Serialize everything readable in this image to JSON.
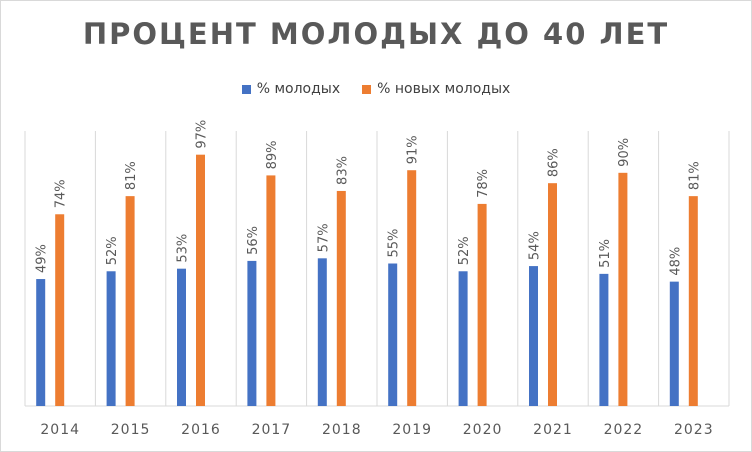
{
  "chart_data": {
    "type": "bar",
    "title": "ПРОЦЕНТ МОЛОДЫХ ДО 40 ЛЕТ",
    "categories": [
      "2014",
      "2015",
      "2016",
      "2017",
      "2018",
      "2019",
      "2020",
      "2021",
      "2022",
      "2023"
    ],
    "series": [
      {
        "name": "% молодых",
        "color": "#4472c4",
        "values": [
          49,
          52,
          53,
          56,
          57,
          55,
          52,
          54,
          51,
          48
        ],
        "labels": [
          "49%",
          "52%",
          "53%",
          "56%",
          "57%",
          "55%",
          "52%",
          "54%",
          "51%",
          "48%"
        ]
      },
      {
        "name": "% новых молодых",
        "color": "#ed7d31",
        "values": [
          74,
          81,
          97,
          89,
          83,
          91,
          78,
          86,
          90,
          81
        ],
        "labels": [
          "74%",
          "81%",
          "97%",
          "89%",
          "83%",
          "91%",
          "78%",
          "86%",
          "90%",
          "81%"
        ]
      }
    ],
    "ylim": [
      0,
      110
    ],
    "legend_position": "top",
    "grid": "vertical"
  }
}
